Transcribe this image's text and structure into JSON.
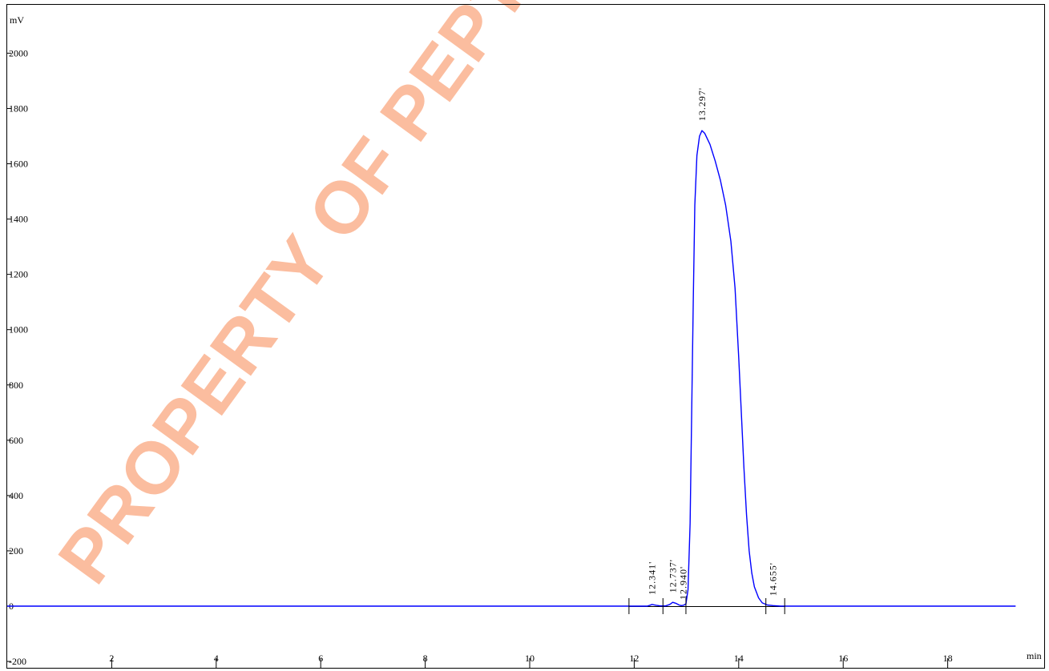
{
  "chart_data": {
    "type": "line",
    "y_unit": "mV",
    "x_unit": "min",
    "xlim": [
      0,
      19.3
    ],
    "ylim": [
      -200,
      2200
    ],
    "x_ticks": [
      "2",
      "4",
      "6",
      "8",
      "10",
      "12",
      "14",
      "16",
      "18"
    ],
    "y_ticks": [
      "2000",
      "1800",
      "1600",
      "1400",
      "1200",
      "1000",
      "800",
      "600",
      "400",
      "200",
      "0",
      "-200"
    ],
    "series": [
      {
        "color": "#0000ff",
        "points": [
          [
            0,
            0
          ],
          [
            11.9,
            0
          ],
          [
            12.25,
            0
          ],
          [
            12.3,
            3
          ],
          [
            12.341,
            6
          ],
          [
            12.42,
            3
          ],
          [
            12.5,
            1
          ],
          [
            12.6,
            1
          ],
          [
            12.68,
            6
          ],
          [
            12.737,
            14
          ],
          [
            12.8,
            10
          ],
          [
            12.86,
            4
          ],
          [
            12.9,
            2
          ],
          [
            12.94,
            3
          ],
          [
            12.99,
            8
          ],
          [
            13.03,
            60
          ],
          [
            13.07,
            300
          ],
          [
            13.1,
            700
          ],
          [
            13.13,
            1100
          ],
          [
            13.16,
            1450
          ],
          [
            13.2,
            1630
          ],
          [
            13.25,
            1700
          ],
          [
            13.297,
            1720
          ],
          [
            13.35,
            1710
          ],
          [
            13.45,
            1670
          ],
          [
            13.55,
            1610
          ],
          [
            13.65,
            1540
          ],
          [
            13.75,
            1450
          ],
          [
            13.85,
            1320
          ],
          [
            13.93,
            1150
          ],
          [
            14.0,
            900
          ],
          [
            14.05,
            700
          ],
          [
            14.1,
            500
          ],
          [
            14.15,
            330
          ],
          [
            14.2,
            200
          ],
          [
            14.25,
            120
          ],
          [
            14.3,
            70
          ],
          [
            14.38,
            30
          ],
          [
            14.45,
            12
          ],
          [
            14.55,
            4
          ],
          [
            14.655,
            2
          ],
          [
            14.8,
            0
          ],
          [
            19.3,
            0
          ]
        ]
      }
    ],
    "peaks": [
      {
        "x": 12.341,
        "label": "12.341'"
      },
      {
        "x": 12.737,
        "label": "12.737'"
      },
      {
        "x": 12.94,
        "label": "12.940'"
      },
      {
        "x": 13.297,
        "label": "13.297'"
      },
      {
        "x": 14.655,
        "label": "14.655'"
      }
    ],
    "integration_markers": [
      11.9,
      12.55,
      12.99,
      14.52,
      14.88
    ],
    "baseline_segment": [
      11.9,
      14.88
    ],
    "grid": false
  },
  "watermark": {
    "text": "PROPERTY OF PEPTIDES",
    "color": "#fbbd9f"
  }
}
